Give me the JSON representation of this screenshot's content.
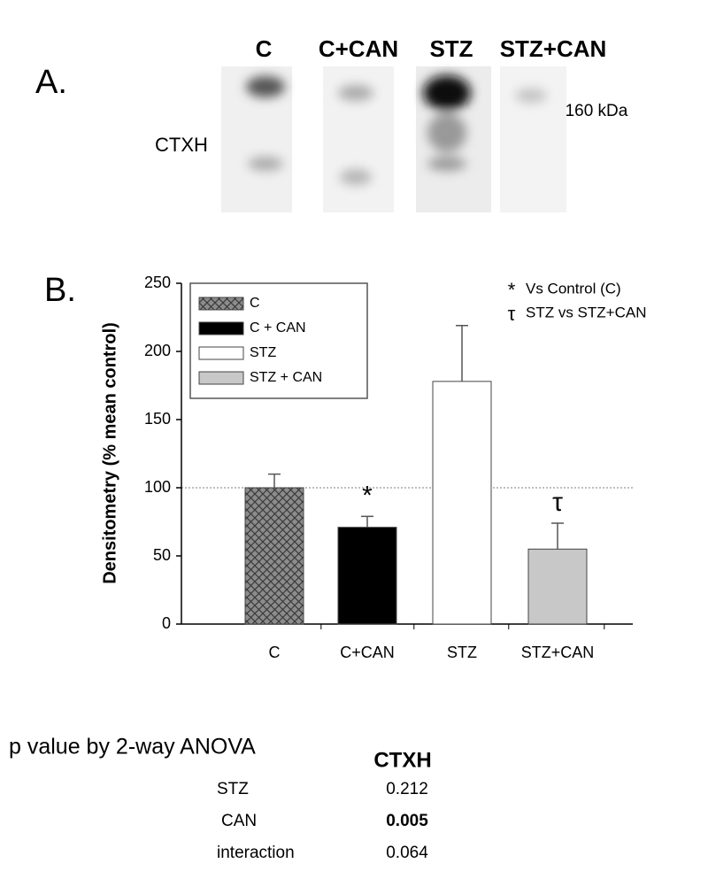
{
  "panel_a": {
    "label": "A.",
    "lanes": [
      "C",
      "C+CAN",
      "STZ",
      "STZ+CAN"
    ],
    "row_label": "CTXH",
    "marker": "–160 kDa"
  },
  "chart_data": {
    "type": "bar",
    "panel_label": "B.",
    "ylabel": "Densitometry (% mean control)",
    "categories": [
      "C",
      "C+CAN",
      "STZ",
      "STZ+CAN"
    ],
    "values": [
      100,
      71,
      178,
      55
    ],
    "errors": [
      10,
      8,
      41,
      19
    ],
    "colors": [
      "#8c8c8c",
      "#000000",
      "#ffffff",
      "#c8c8c8"
    ],
    "hatch": [
      true,
      false,
      false,
      false
    ],
    "legend_labels": [
      "C",
      "C + CAN",
      "STZ",
      "STZ + CAN"
    ],
    "markers": [
      null,
      "*",
      null,
      "τ"
    ],
    "notes": [
      {
        "symbol": "*",
        "text": "Vs Control (C)"
      },
      {
        "symbol": "τ",
        "text": "STZ vs STZ+CAN"
      }
    ],
    "reference_line": 100,
    "ylim": [
      0,
      250
    ],
    "yticks": [
      0,
      50,
      100,
      150,
      200,
      250
    ]
  },
  "anova": {
    "title": "p value by 2-way ANOVA",
    "column": "CTXH",
    "rows": [
      {
        "label": "STZ",
        "value": "0.212",
        "bold": false
      },
      {
        "label": "CAN",
        "value": "0.005",
        "bold": true
      },
      {
        "label": "interaction",
        "value": "0.064",
        "bold": false
      }
    ]
  }
}
